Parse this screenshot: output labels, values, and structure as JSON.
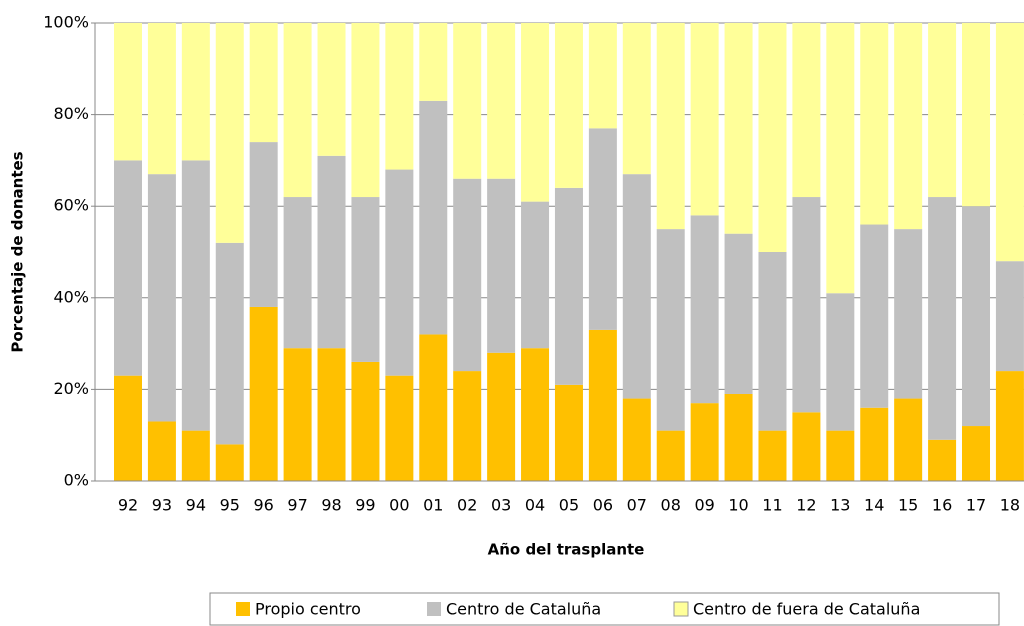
{
  "chart_data": {
    "type": "stacked-bar",
    "x_label": "Año del trasplante",
    "y_label": "Porcentaje de donantes",
    "categories": [
      "92",
      "93",
      "94",
      "95",
      "96",
      "97",
      "98",
      "99",
      "00",
      "01",
      "02",
      "03",
      "04",
      "05",
      "06",
      "07",
      "08",
      "09",
      "10",
      "11",
      "12",
      "13",
      "14",
      "15",
      "16",
      "17",
      "18"
    ],
    "series": [
      {
        "name": "Propio centro",
        "color": "#ffc000",
        "values": [
          23,
          13,
          11,
          8,
          38,
          29,
          29,
          26,
          23,
          32,
          24,
          28,
          29,
          21,
          33,
          18,
          11,
          17,
          19,
          11,
          15,
          11,
          16,
          18,
          9,
          12,
          24
        ]
      },
      {
        "name": "Centro de Cataluña",
        "color": "#c0c0c0",
        "values": [
          47,
          54,
          59,
          44,
          36,
          33,
          42,
          36,
          45,
          51,
          42,
          38,
          32,
          43,
          44,
          49,
          44,
          41,
          35,
          39,
          47,
          30,
          40,
          37,
          53,
          48,
          24
        ]
      },
      {
        "name": "Centro de fuera de Cataluña",
        "color": "#ffff99",
        "values": [
          30,
          33,
          30,
          48,
          26,
          38,
          29,
          38,
          32,
          17,
          34,
          34,
          39,
          36,
          23,
          33,
          45,
          42,
          46,
          50,
          38,
          59,
          44,
          45,
          38,
          40,
          52
        ]
      }
    ],
    "ylim": [
      0,
      100
    ],
    "yticks": [
      {
        "value": 0,
        "label": "0%"
      },
      {
        "value": 20,
        "label": "20%"
      },
      {
        "value": 40,
        "label": "40%"
      },
      {
        "value": 60,
        "label": "60%"
      },
      {
        "value": 80,
        "label": "80%"
      },
      {
        "value": 100,
        "label": "100%"
      }
    ],
    "grid": true,
    "legend": "bottom"
  }
}
